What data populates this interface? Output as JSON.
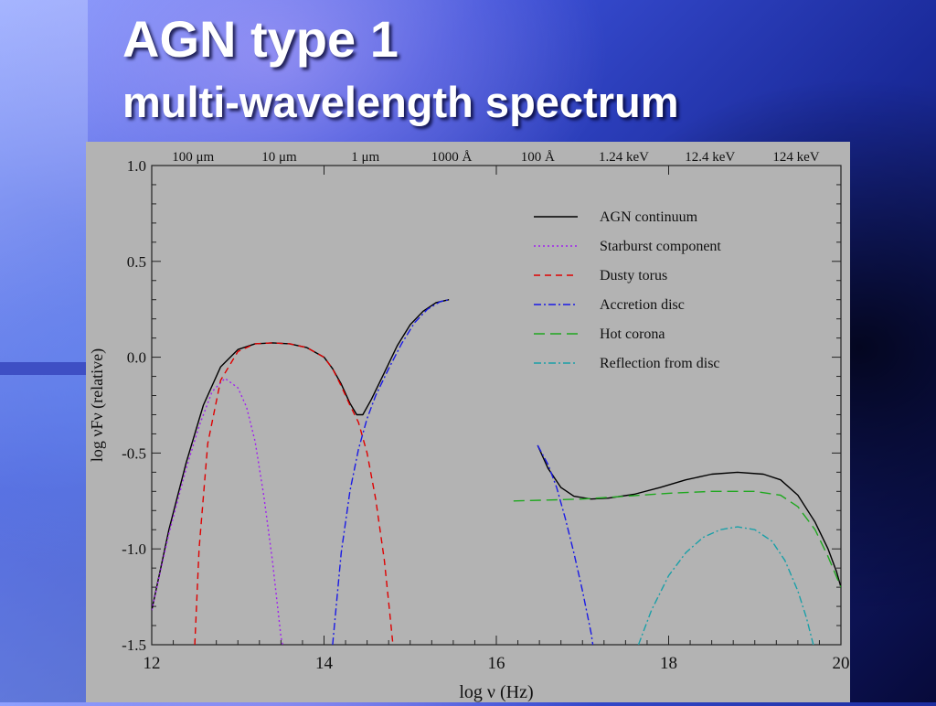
{
  "title": {
    "line1": "AGN type 1",
    "line2": "multi-wavelength spectrum"
  },
  "chart_data": {
    "type": "line",
    "xlabel": "log ν (Hz)",
    "ylabel": "log νFν  (relative)",
    "xlim": [
      12,
      20
    ],
    "ylim": [
      -1.5,
      1.0
    ],
    "x_ticks": [
      12,
      14,
      16,
      18,
      20
    ],
    "y_ticks": [
      1.0,
      0.5,
      0.0,
      -0.5,
      -1.0,
      -1.5
    ],
    "x_tick_labels": [
      "12",
      "14",
      "16",
      "18",
      "20"
    ],
    "y_tick_labels": [
      "1.0",
      "0.5",
      "0.0",
      "-0.5",
      "-1.0",
      "-1.5"
    ],
    "top_axis_labels": [
      {
        "label": "100 μm",
        "x": 12.48
      },
      {
        "label": "10 μm",
        "x": 13.48
      },
      {
        "label": "1 μm",
        "x": 14.48
      },
      {
        "label": "1000 Å",
        "x": 15.48
      },
      {
        "label": "100 Å",
        "x": 16.48
      },
      {
        "label": "1.24 keV",
        "x": 17.48
      },
      {
        "label": "12.4 keV",
        "x": 18.48
      },
      {
        "label": "124 keV",
        "x": 19.48
      }
    ],
    "grid": false,
    "legend_position": "top-right",
    "series": [
      {
        "name": "AGN continuum",
        "color": "#000000",
        "dash": "",
        "segments": [
          [
            [
              12.0,
              -1.32
            ],
            [
              12.2,
              -0.9
            ],
            [
              12.4,
              -0.55
            ],
            [
              12.6,
              -0.25
            ],
            [
              12.8,
              -0.05
            ],
            [
              13.0,
              0.04
            ],
            [
              13.2,
              0.07
            ],
            [
              13.4,
              0.075
            ],
            [
              13.6,
              0.07
            ],
            [
              13.8,
              0.05
            ],
            [
              14.0,
              0.0
            ],
            [
              14.1,
              -0.06
            ],
            [
              14.2,
              -0.14
            ],
            [
              14.3,
              -0.24
            ],
            [
              14.38,
              -0.3
            ],
            [
              14.45,
              -0.3
            ],
            [
              14.55,
              -0.22
            ],
            [
              14.7,
              -0.08
            ],
            [
              14.85,
              0.06
            ],
            [
              15.0,
              0.17
            ],
            [
              15.15,
              0.24
            ],
            [
              15.3,
              0.285
            ],
            [
              15.45,
              0.3
            ]
          ],
          [
            [
              16.48,
              -0.46
            ],
            [
              16.6,
              -0.58
            ],
            [
              16.75,
              -0.68
            ],
            [
              16.9,
              -0.725
            ],
            [
              17.1,
              -0.74
            ],
            [
              17.3,
              -0.735
            ],
            [
              17.6,
              -0.715
            ],
            [
              17.9,
              -0.68
            ],
            [
              18.2,
              -0.64
            ],
            [
              18.5,
              -0.61
            ],
            [
              18.8,
              -0.6
            ],
            [
              19.1,
              -0.61
            ],
            [
              19.3,
              -0.64
            ],
            [
              19.5,
              -0.72
            ],
            [
              19.7,
              -0.86
            ],
            [
              19.85,
              -1.0
            ],
            [
              19.95,
              -1.12
            ],
            [
              20.0,
              -1.2
            ]
          ]
        ]
      },
      {
        "name": "Starburst component",
        "color": "#a020f0",
        "dash": "2,3",
        "segments": [
          [
            [
              12.0,
              -1.32
            ],
            [
              12.2,
              -0.92
            ],
            [
              12.4,
              -0.58
            ],
            [
              12.55,
              -0.36
            ],
            [
              12.7,
              -0.18
            ],
            [
              12.85,
              -0.11
            ],
            [
              13.0,
              -0.16
            ],
            [
              13.1,
              -0.26
            ],
            [
              13.2,
              -0.44
            ],
            [
              13.3,
              -0.72
            ],
            [
              13.4,
              -1.06
            ],
            [
              13.5,
              -1.46
            ],
            [
              13.52,
              -1.5
            ]
          ]
        ]
      },
      {
        "name": "Dusty torus",
        "color": "#e00000",
        "dash": "7,5",
        "segments": [
          [
            [
              12.5,
              -1.5
            ],
            [
              12.55,
              -1.0
            ],
            [
              12.65,
              -0.45
            ],
            [
              12.8,
              -0.12
            ],
            [
              13.0,
              0.03
            ],
            [
              13.2,
              0.07
            ],
            [
              13.4,
              0.075
            ],
            [
              13.6,
              0.07
            ],
            [
              13.8,
              0.05
            ],
            [
              14.0,
              0.0
            ],
            [
              14.1,
              -0.06
            ],
            [
              14.2,
              -0.15
            ],
            [
              14.3,
              -0.25
            ],
            [
              14.4,
              -0.34
            ],
            [
              14.5,
              -0.5
            ],
            [
              14.6,
              -0.74
            ],
            [
              14.7,
              -1.06
            ],
            [
              14.76,
              -1.32
            ],
            [
              14.8,
              -1.5
            ]
          ]
        ]
      },
      {
        "name": "Accretion disc",
        "color": "#1a1ae6",
        "dash": "8,3,2,3",
        "segments": [
          [
            [
              14.1,
              -1.5
            ],
            [
              14.2,
              -1.02
            ],
            [
              14.3,
              -0.7
            ],
            [
              14.4,
              -0.48
            ],
            [
              14.5,
              -0.32
            ],
            [
              14.6,
              -0.2
            ],
            [
              14.75,
              -0.06
            ],
            [
              14.9,
              0.07
            ],
            [
              15.05,
              0.18
            ],
            [
              15.2,
              0.25
            ],
            [
              15.35,
              0.29
            ],
            [
              15.45,
              0.3
            ]
          ],
          [
            [
              16.48,
              -0.46
            ],
            [
              16.6,
              -0.56
            ],
            [
              16.7,
              -0.68
            ],
            [
              16.8,
              -0.84
            ],
            [
              16.9,
              -1.02
            ],
            [
              17.0,
              -1.22
            ],
            [
              17.1,
              -1.44
            ],
            [
              17.12,
              -1.5
            ]
          ]
        ]
      },
      {
        "name": "Hot corona",
        "color": "#1fa81f",
        "dash": "12,6",
        "segments": [
          [
            [
              16.2,
              -0.75
            ],
            [
              16.6,
              -0.745
            ],
            [
              17.0,
              -0.74
            ],
            [
              17.5,
              -0.725
            ],
            [
              18.0,
              -0.71
            ],
            [
              18.5,
              -0.7
            ],
            [
              19.0,
              -0.7
            ],
            [
              19.3,
              -0.72
            ],
            [
              19.5,
              -0.78
            ],
            [
              19.7,
              -0.9
            ],
            [
              19.85,
              -1.04
            ],
            [
              20.0,
              -1.2
            ]
          ]
        ]
      },
      {
        "name": "Reflection from disc",
        "color": "#1aa0a8",
        "dash": "8,3,2,3",
        "segments": [
          [
            [
              17.65,
              -1.5
            ],
            [
              17.8,
              -1.32
            ],
            [
              18.0,
              -1.14
            ],
            [
              18.2,
              -1.02
            ],
            [
              18.4,
              -0.94
            ],
            [
              18.6,
              -0.9
            ],
            [
              18.8,
              -0.885
            ],
            [
              19.0,
              -0.9
            ],
            [
              19.2,
              -0.96
            ],
            [
              19.35,
              -1.06
            ],
            [
              19.5,
              -1.22
            ],
            [
              19.6,
              -1.36
            ],
            [
              19.68,
              -1.5
            ]
          ]
        ]
      }
    ]
  }
}
